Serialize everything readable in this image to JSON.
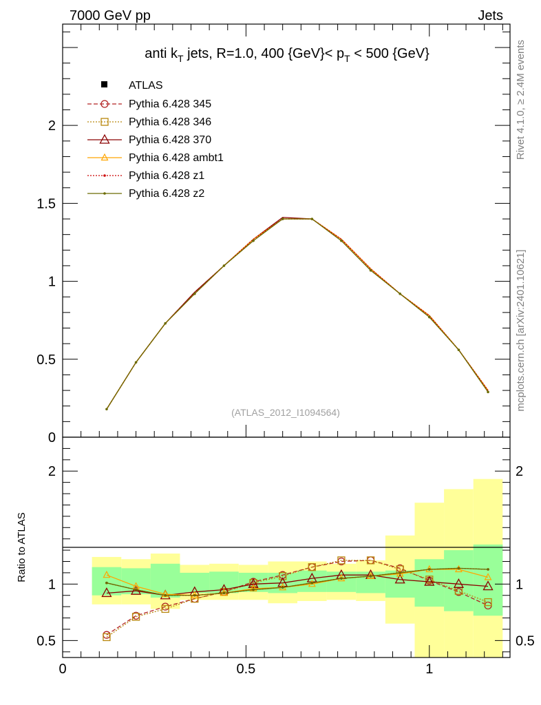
{
  "header": {
    "left": "7000 GeV pp",
    "right": "Jets"
  },
  "side": {
    "rivet": "Rivet 4.1.0, ≥ 2.4M events",
    "mcplots": "mcplots.cern.ch [arXiv:2401.10621]"
  },
  "main": {
    "title": "anti k_T jets, R=1.0,  400 {GeV}< p_T < 500 {GeV}",
    "title_parts": {
      "a": "anti k",
      "b": "T",
      "c": " jets, R=1.0,  400 {GeV}< p",
      "d": "T",
      "e": " < 500 {GeV}"
    },
    "watermark": "(ATLAS_2012_I1094564)"
  },
  "ratio": {
    "ylabel": "Ratio to ATLAS"
  },
  "colors": {
    "p345": "#b22222",
    "p346": "#b8860b",
    "p370": "#8b0000",
    "ambt1": "#ffa500",
    "z1": "#cc0000",
    "z2": "#6b6b00",
    "band_inner": "#99ff99",
    "band_outer": "#ffff99"
  },
  "chart_data": [
    {
      "type": "line",
      "panel": "main",
      "title": "anti k_T jets, R=1.0,  400 {GeV}< p_T < 500 {GeV}",
      "xlim": [
        0,
        1.22
      ],
      "ylim": [
        0,
        2.65
      ],
      "yticks": [
        0,
        0.5,
        1,
        1.5,
        2
      ],
      "ytick_labels": [
        "0",
        "0.5",
        "1",
        "1.5",
        "2"
      ],
      "x": [
        0.12,
        0.2,
        0.28,
        0.36,
        0.44,
        0.52,
        0.6,
        0.68,
        0.76,
        0.84,
        0.92,
        1.0,
        1.08,
        1.16
      ],
      "series": [
        {
          "key": "p345",
          "name": "Pythia 6.428 345",
          "marker": "circle",
          "dash": "6,3",
          "values": [
            0.18,
            0.48,
            0.73,
            0.93,
            1.1,
            1.27,
            1.4,
            1.4,
            1.27,
            1.08,
            0.92,
            0.78,
            0.56,
            0.3
          ]
        },
        {
          "key": "p346",
          "name": "Pythia 6.428 346",
          "marker": "square",
          "dash": "2,2",
          "values": [
            0.18,
            0.48,
            0.73,
            0.93,
            1.1,
            1.27,
            1.4,
            1.4,
            1.27,
            1.08,
            0.92,
            0.78,
            0.56,
            0.3
          ]
        },
        {
          "key": "p370",
          "name": "Pythia 6.428 370",
          "marker": "triangle",
          "dash": "",
          "values": [
            0.18,
            0.48,
            0.73,
            0.93,
            1.1,
            1.27,
            1.41,
            1.4,
            1.27,
            1.08,
            0.92,
            0.78,
            0.56,
            0.3
          ]
        },
        {
          "key": "ambt1",
          "name": "Pythia 6.428 ambt1",
          "marker": "triangle-small",
          "dash": "",
          "values": [
            0.18,
            0.48,
            0.73,
            0.92,
            1.1,
            1.27,
            1.4,
            1.4,
            1.27,
            1.08,
            0.92,
            0.78,
            0.56,
            0.3
          ]
        },
        {
          "key": "z1",
          "name": "Pythia 6.428 z1",
          "marker": "dot",
          "dash": "2,2",
          "values": [
            0.18,
            0.48,
            0.73,
            0.92,
            1.1,
            1.27,
            1.4,
            1.4,
            1.27,
            1.08,
            0.92,
            0.78,
            0.56,
            0.3
          ]
        },
        {
          "key": "z2",
          "name": "Pythia 6.428 z2",
          "marker": "dot",
          "dash": "",
          "values": [
            0.18,
            0.48,
            0.73,
            0.92,
            1.1,
            1.26,
            1.4,
            1.4,
            1.26,
            1.07,
            0.92,
            0.77,
            0.56,
            0.29
          ]
        }
      ],
      "legend": {
        "placement": "top-left",
        "data_label": "ATLAS"
      }
    },
    {
      "type": "line",
      "panel": "ratio",
      "ylabel": "Ratio to ATLAS",
      "xlim": [
        0,
        1.22
      ],
      "ylim": [
        0.35,
        2.3
      ],
      "xticks": [
        0,
        0.5,
        1
      ],
      "xtick_labels": [
        "0",
        "0.5",
        "1"
      ],
      "yticks": [
        0.5,
        1,
        2
      ],
      "ytick_labels": [
        "0.5",
        "1",
        "2"
      ],
      "x": [
        0.12,
        0.2,
        0.28,
        0.36,
        0.44,
        0.52,
        0.6,
        0.68,
        0.76,
        0.84,
        0.92,
        1.0,
        1.08,
        1.16
      ],
      "bin_edges": [
        0.08,
        0.16,
        0.24,
        0.32,
        0.4,
        0.48,
        0.56,
        0.64,
        0.72,
        0.8,
        0.88,
        0.96,
        1.04,
        1.12,
        1.2
      ],
      "band_inner": [
        [
          0.9,
          1.15
        ],
        [
          0.91,
          1.14
        ],
        [
          0.88,
          1.18
        ],
        [
          0.92,
          1.1
        ],
        [
          0.92,
          1.11
        ],
        [
          0.93,
          1.1
        ],
        [
          0.92,
          1.1
        ],
        [
          0.93,
          1.12
        ],
        [
          0.93,
          1.11
        ],
        [
          0.92,
          1.11
        ],
        [
          0.88,
          1.12
        ],
        [
          0.8,
          1.22
        ],
        [
          0.76,
          1.3
        ],
        [
          0.72,
          1.35
        ]
      ],
      "band_outer": [
        [
          0.82,
          1.24
        ],
        [
          0.82,
          1.22
        ],
        [
          0.78,
          1.27
        ],
        [
          0.86,
          1.17
        ],
        [
          0.86,
          1.18
        ],
        [
          0.86,
          1.17
        ],
        [
          0.83,
          1.2
        ],
        [
          0.85,
          1.2
        ],
        [
          0.86,
          1.18
        ],
        [
          0.85,
          1.21
        ],
        [
          0.65,
          1.43
        ],
        [
          0.35,
          1.72
        ],
        [
          0.35,
          1.84
        ],
        [
          0.35,
          1.93
        ]
      ],
      "series": [
        {
          "key": "p345",
          "values": [
            0.55,
            0.72,
            0.8,
            0.87,
            0.93,
            1.02,
            1.08,
            1.15,
            1.2,
            1.21,
            1.14,
            1.03,
            0.93,
            0.81
          ]
        },
        {
          "key": "p346",
          "values": [
            0.53,
            0.71,
            0.78,
            0.87,
            0.93,
            1.01,
            1.07,
            1.15,
            1.21,
            1.21,
            1.13,
            1.04,
            0.94,
            0.84
          ]
        },
        {
          "key": "p370",
          "values": [
            0.92,
            0.94,
            0.9,
            0.93,
            0.95,
            1.0,
            1.01,
            1.05,
            1.08,
            1.08,
            1.04,
            1.02,
            1.0,
            0.98
          ]
        },
        {
          "key": "ambt1",
          "values": [
            1.08,
            0.98,
            0.91,
            0.9,
            0.92,
            0.96,
            0.97,
            1.0,
            1.05,
            1.07,
            1.09,
            1.13,
            1.13,
            1.06
          ]
        },
        {
          "key": "z1",
          "values": [
            1.01,
            0.95,
            0.9,
            0.9,
            0.92,
            0.95,
            0.97,
            1.01,
            1.05,
            1.07,
            1.1,
            1.13,
            1.14,
            1.13
          ]
        },
        {
          "key": "z2",
          "values": [
            1.01,
            0.95,
            0.9,
            0.9,
            0.92,
            0.95,
            0.97,
            1.01,
            1.05,
            1.07,
            1.1,
            1.13,
            1.14,
            1.13
          ]
        }
      ]
    }
  ]
}
